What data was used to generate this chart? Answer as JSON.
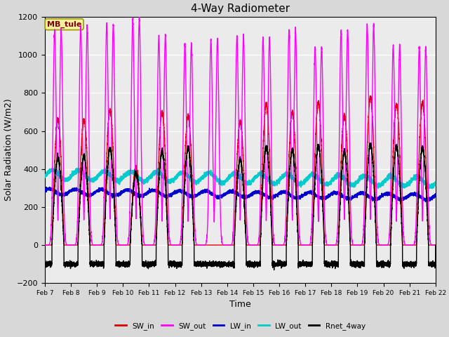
{
  "title": "4-Way Radiometer",
  "xlabel": "Time",
  "ylabel": "Solar Radiation (W/m2)",
  "ylim": [
    -200,
    1200
  ],
  "x_tick_labels": [
    "Feb 7",
    "Feb 8",
    "Feb 9",
    "Feb 10",
    "Feb 11",
    "Feb 12",
    "Feb 13",
    "Feb 14",
    "Feb 15",
    "Feb 16",
    "Feb 17",
    "Feb 18",
    "Feb 19",
    "Feb 20",
    "Feb 21",
    "Feb 22"
  ],
  "annotation_text": "MB_tule",
  "colors": {
    "SW_in": "#dd0000",
    "SW_out": "#ff00ff",
    "LW_in": "#0000cc",
    "LW_out": "#00cccc",
    "Rnet_4way": "#000000"
  },
  "bg_color": "#d8d8d8",
  "plot_bg_color": "#ebebeb",
  "grid_color": "#ffffff",
  "lw_main": 1.0,
  "lw_lw": 1.2,
  "SW_in_peaks": [
    660,
    660,
    710,
    410,
    700,
    680,
    0,
    650,
    740,
    700,
    750,
    680,
    780,
    740,
    750
  ],
  "SW_out_peaks": [
    1130,
    1150,
    1160,
    1190,
    1100,
    1060,
    1080,
    1100,
    1090,
    1130,
    1040,
    1130,
    1160,
    1050,
    1040
  ],
  "Rnet_peaks": [
    460,
    470,
    510,
    380,
    490,
    510,
    0,
    450,
    515,
    500,
    520,
    490,
    530,
    520,
    510
  ],
  "LW_in_base": 280,
  "LW_out_base": 370,
  "n_days": 15,
  "pts_per_day": 480
}
